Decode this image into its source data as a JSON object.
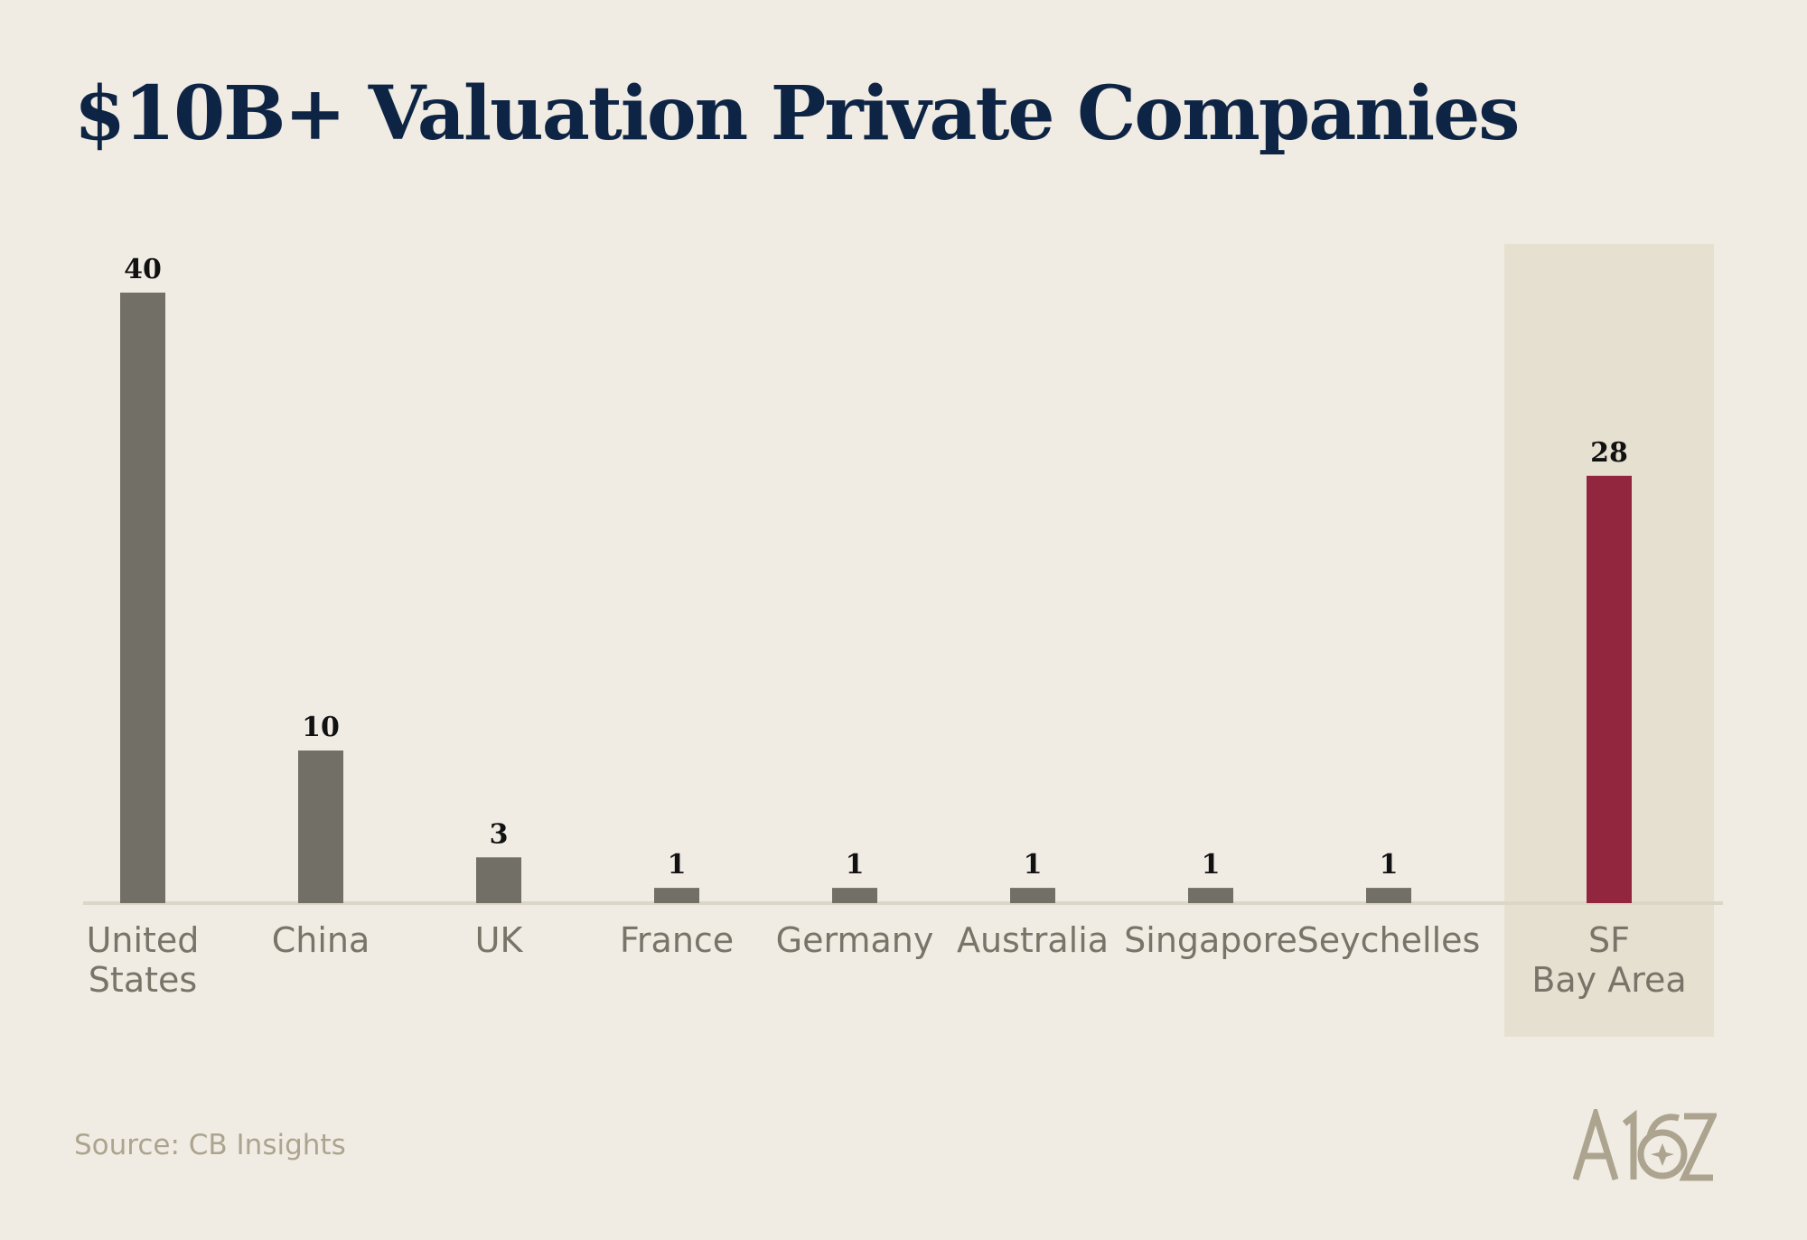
{
  "title": "$10B+ Valuation Private Companies",
  "source": "Source: CB Insights",
  "logo_text": "A16Z",
  "colors": {
    "background": "#f0ece4",
    "bar": "#726f67",
    "highlight_bar": "#93263f",
    "highlight_panel": "#e6e0d1",
    "baseline": "#dcd6c8",
    "title": "#0e2444"
  },
  "chart_data": {
    "type": "bar",
    "title": "$10B+ Valuation Private Companies",
    "xlabel": "",
    "ylabel": "",
    "ylim": [
      0,
      40
    ],
    "grid": false,
    "categories": [
      [
        "United",
        "States"
      ],
      [
        "China"
      ],
      [
        "UK"
      ],
      [
        "France"
      ],
      [
        "Germany"
      ],
      [
        "Australia"
      ],
      [
        "Singapore"
      ],
      [
        "Seychelles"
      ],
      [
        "SF",
        "Bay Area"
      ]
    ],
    "values": [
      40,
      10,
      3,
      1,
      1,
      1,
      1,
      1,
      28
    ],
    "highlighted": [
      "SF Bay Area"
    ]
  }
}
